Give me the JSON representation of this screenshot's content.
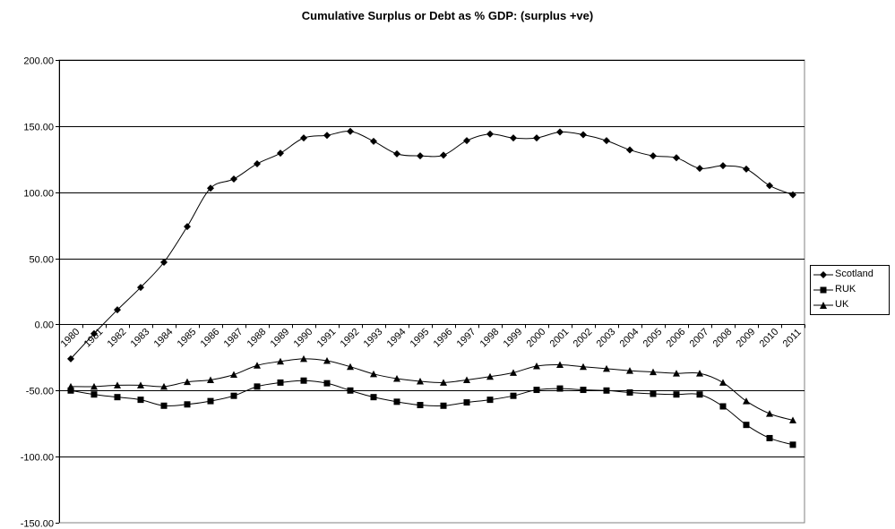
{
  "chart_data": {
    "type": "line",
    "title": "Cumulative Surplus or Debt as % GDP: (surplus +ve)",
    "xlabel": "",
    "ylabel": "",
    "ylim": [
      -150,
      200
    ],
    "yticks": [
      "200.00",
      "150.00",
      "100.00",
      "50.00",
      "0.00",
      "-50.00",
      "-100.00",
      "-150.00"
    ],
    "ytick_values": [
      200,
      150,
      100,
      50,
      0,
      -50,
      -100,
      -150
    ],
    "categories": [
      "1980",
      "1981",
      "1982",
      "1983",
      "1984",
      "1985",
      "1986",
      "1987",
      "1988",
      "1989",
      "1990",
      "1991",
      "1992",
      "1993",
      "1994",
      "1995",
      "1996",
      "1997",
      "1998",
      "1999",
      "2000",
      "2001",
      "2002",
      "2003",
      "2004",
      "2005",
      "2006",
      "2007",
      "2008",
      "2009",
      "2010",
      "2011"
    ],
    "grid": "horizontal major gridlines",
    "legend_position": "right",
    "series": [
      {
        "name": "Scotland",
        "marker": "diamond",
        "values": [
          -26,
          -7,
          11,
          28,
          47,
          74,
          103,
          110,
          121.5,
          129.5,
          141,
          143,
          146,
          138.5,
          129,
          127.5,
          128,
          139,
          144,
          141,
          141,
          145.5,
          143.5,
          139,
          132,
          127.5,
          126,
          118,
          120,
          117.5,
          105,
          98
        ]
      },
      {
        "name": "RUK",
        "marker": "square",
        "values": [
          -50,
          -53,
          -55,
          -57,
          -61.5,
          -60.5,
          -58,
          -54,
          -47,
          -44,
          -42.5,
          -44.5,
          -50,
          -55,
          -58.5,
          -61,
          -61.5,
          -59,
          -57,
          -54,
          -49.5,
          -48.5,
          -49.5,
          -50,
          -51.5,
          -52.5,
          -53,
          -53,
          -62,
          -76,
          -86,
          -91
        ]
      },
      {
        "name": "UK",
        "marker": "triangle",
        "values": [
          -47,
          -47,
          -46,
          -46,
          -47,
          -43.5,
          -42,
          -38,
          -31,
          -28,
          -26,
          -27.5,
          -32,
          -37.5,
          -41,
          -43,
          -44,
          -42,
          -39.5,
          -36.5,
          -31.5,
          -30.5,
          -32,
          -33.5,
          -35,
          -36,
          -37,
          -37,
          -44,
          -58,
          -67.5,
          -72.5
        ]
      }
    ]
  },
  "legend": {
    "items": [
      {
        "label": "Scotland",
        "marker": "diamond"
      },
      {
        "label": "RUK",
        "marker": "square"
      },
      {
        "label": "UK",
        "marker": "triangle"
      }
    ]
  }
}
